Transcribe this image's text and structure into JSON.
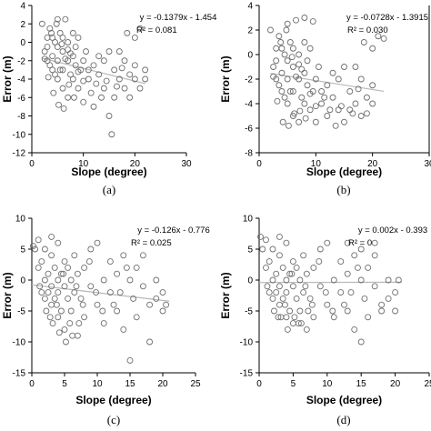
{
  "chart_data": [
    {
      "type": "scatter",
      "panel_label": "(a)",
      "xlabel": "Slope (degree)",
      "ylabel": "Error (m)",
      "xlim": [
        0,
        30
      ],
      "ylim": [
        -12,
        4
      ],
      "xticks": [
        0,
        10,
        20,
        30
      ],
      "yticks": [
        -12,
        -10,
        -8,
        -6,
        -4,
        -2,
        0,
        2,
        4
      ],
      "equation": "y = -0.1379x - 1.454",
      "r2": "R² = 0.081",
      "trend": {
        "slope": -0.1379,
        "intercept": -1.454,
        "x_range": [
          2,
          22
        ]
      },
      "points": [
        [
          2,
          2
        ],
        [
          2.5,
          -1
        ],
        [
          3,
          0.5
        ],
        [
          3,
          -2
        ],
        [
          3.5,
          1.5
        ],
        [
          4,
          -1.5
        ],
        [
          4,
          -3
        ],
        [
          4.5,
          0
        ],
        [
          5,
          2.5
        ],
        [
          5,
          -2
        ],
        [
          5,
          -4
        ],
        [
          5.5,
          1
        ],
        [
          6,
          -1
        ],
        [
          6,
          -3
        ],
        [
          6,
          -5
        ],
        [
          6.5,
          2.5
        ],
        [
          7,
          0
        ],
        [
          7,
          -2
        ],
        [
          7,
          -6
        ],
        [
          7.5,
          -3.5
        ],
        [
          8,
          1
        ],
        [
          8,
          -1.5
        ],
        [
          8,
          -4
        ],
        [
          8.5,
          -2.5
        ],
        [
          9,
          0.5
        ],
        [
          9,
          -5
        ],
        [
          9.5,
          -3
        ],
        [
          10,
          -2
        ],
        [
          10,
          -6.5
        ],
        [
          10.5,
          -1
        ],
        [
          11,
          -4
        ],
        [
          11,
          -3
        ],
        [
          12,
          -2.5
        ],
        [
          12,
          -7
        ],
        [
          13,
          -1.5
        ],
        [
          13,
          -3.5
        ],
        [
          14,
          -5
        ],
        [
          14,
          -2
        ],
        [
          15,
          -8
        ],
        [
          15,
          -1
        ],
        [
          15.5,
          -10
        ],
        [
          16,
          -3
        ],
        [
          16,
          -6
        ],
        [
          17,
          -4
        ],
        [
          17,
          -1
        ],
        [
          18,
          -2
        ],
        [
          18,
          -5
        ],
        [
          19,
          -3.5
        ],
        [
          19,
          -6
        ],
        [
          20,
          -2.5
        ],
        [
          20,
          -4
        ],
        [
          21,
          -5
        ],
        [
          22,
          -4
        ],
        [
          22,
          -3
        ],
        [
          3,
          -0.5
        ],
        [
          4,
          0.5
        ],
        [
          5,
          -0.5
        ],
        [
          6,
          0.5
        ],
        [
          7,
          -0.8
        ],
        [
          3.5,
          -2.5
        ],
        [
          4.5,
          -3.5
        ],
        [
          5.5,
          -3
        ],
        [
          6.5,
          -1.8
        ],
        [
          7.5,
          -1.2
        ],
        [
          8.5,
          -0.5
        ],
        [
          2.5,
          -1.8
        ],
        [
          3.2,
          -3.8
        ],
        [
          9,
          -3.2
        ],
        [
          10,
          -4.2
        ],
        [
          11.5,
          -5.5
        ],
        [
          12.5,
          -4.5
        ],
        [
          13.5,
          -6
        ],
        [
          14.5,
          -4.2
        ],
        [
          16.5,
          -4.8
        ],
        [
          17.5,
          -2.8
        ],
        [
          18.5,
          1
        ],
        [
          20,
          0.5
        ],
        [
          21,
          1.5
        ],
        [
          4.2,
          -5.5
        ],
        [
          5.2,
          -6.8
        ],
        [
          6.2,
          -7.2
        ],
        [
          7.2,
          -4.6
        ],
        [
          8.2,
          -6
        ],
        [
          3.8,
          1
        ],
        [
          4.8,
          2
        ],
        [
          5.8,
          -0.2
        ]
      ]
    },
    {
      "type": "scatter",
      "panel_label": "(b)",
      "xlabel": "Slope (degree)",
      "ylabel": "Error (m)",
      "xlim": [
        0,
        30
      ],
      "ylim": [
        -8,
        4
      ],
      "xticks": [
        0,
        10,
        20,
        30
      ],
      "yticks": [
        -8,
        -6,
        -4,
        -2,
        0,
        2,
        4
      ],
      "equation": "y = -0.0728x - 1.3915",
      "r2": "R² = 0.030",
      "trend": {
        "slope": -0.0728,
        "intercept": -1.3915,
        "x_range": [
          2,
          22
        ]
      },
      "points": [
        [
          2,
          2
        ],
        [
          2.5,
          -1
        ],
        [
          3,
          0.5
        ],
        [
          3,
          -2
        ],
        [
          3.5,
          1.5
        ],
        [
          4,
          -1.5
        ],
        [
          4,
          -3
        ],
        [
          4.5,
          0
        ],
        [
          5,
          2.5
        ],
        [
          5,
          -2
        ],
        [
          5,
          -4
        ],
        [
          5.5,
          1
        ],
        [
          6,
          -1
        ],
        [
          6,
          -3
        ],
        [
          6,
          -5
        ],
        [
          6.5,
          2.8
        ],
        [
          7,
          0
        ],
        [
          7,
          -2
        ],
        [
          7,
          -5.5
        ],
        [
          7.5,
          -3.5
        ],
        [
          8,
          1
        ],
        [
          8,
          -1.5
        ],
        [
          8,
          -4
        ],
        [
          8.5,
          -2.5
        ],
        [
          9,
          0.5
        ],
        [
          9,
          -4.5
        ],
        [
          9.5,
          -3
        ],
        [
          10,
          -2
        ],
        [
          10,
          -5.5
        ],
        [
          10.5,
          -1
        ],
        [
          11,
          -4
        ],
        [
          11,
          -3
        ],
        [
          12,
          -2.5
        ],
        [
          12,
          -5
        ],
        [
          13,
          -1.5
        ],
        [
          13,
          -3.5
        ],
        [
          14,
          -4.5
        ],
        [
          14,
          -2
        ],
        [
          15,
          -5.5
        ],
        [
          15,
          -1
        ],
        [
          16,
          -3
        ],
        [
          16,
          -4.5
        ],
        [
          17,
          -4
        ],
        [
          17,
          -1
        ],
        [
          18,
          -2
        ],
        [
          18,
          -5
        ],
        [
          19,
          -3.5
        ],
        [
          19,
          -4.8
        ],
        [
          20,
          -2.5
        ],
        [
          20,
          -4
        ],
        [
          21,
          1.5
        ],
        [
          22,
          1.3
        ],
        [
          3,
          -0.5
        ],
        [
          4,
          0.5
        ],
        [
          5,
          -0.5
        ],
        [
          6,
          0.5
        ],
        [
          7,
          -0.8
        ],
        [
          3.5,
          -2.5
        ],
        [
          4.5,
          -3.5
        ],
        [
          5.5,
          -3
        ],
        [
          6.5,
          -1.8
        ],
        [
          7.5,
          -1.2
        ],
        [
          8.5,
          -0.5
        ],
        [
          2.5,
          -1.8
        ],
        [
          3.2,
          -3.8
        ],
        [
          9,
          -3.2
        ],
        [
          10,
          -4.2
        ],
        [
          11.5,
          -3.5
        ],
        [
          12.5,
          -4.5
        ],
        [
          13.5,
          -5.8
        ],
        [
          14.5,
          -4.2
        ],
        [
          16.5,
          -4.8
        ],
        [
          17.5,
          -2.8
        ],
        [
          18.5,
          1
        ],
        [
          20,
          0.5
        ],
        [
          4.2,
          -5.5
        ],
        [
          5.2,
          -5.8
        ],
        [
          6.2,
          -4.8
        ],
        [
          7.2,
          -4.6
        ],
        [
          8.2,
          -5.2
        ],
        [
          3.8,
          1
        ],
        [
          4.8,
          2
        ],
        [
          5.8,
          -0.2
        ],
        [
          9.5,
          2.7
        ],
        [
          8,
          3
        ]
      ]
    },
    {
      "type": "scatter",
      "panel_label": "(c)",
      "xlabel": "Slope (degree)",
      "ylabel": "Error (m)",
      "xlim": [
        0,
        25
      ],
      "ylim": [
        -15,
        10
      ],
      "xticks": [
        0,
        5,
        10,
        15,
        20,
        25
      ],
      "yticks": [
        -15,
        -10,
        -5,
        0,
        5,
        10
      ],
      "equation": "y = -0.126x - 0.776",
      "r2": "R² = 0.025",
      "trend": {
        "slope": -0.126,
        "intercept": -0.776,
        "x_range": [
          0,
          21
        ]
      },
      "points": [
        [
          0.2,
          5.5
        ],
        [
          0.5,
          5
        ],
        [
          1,
          2
        ],
        [
          1.2,
          -1
        ],
        [
          1.5,
          3
        ],
        [
          2,
          0
        ],
        [
          2,
          -3
        ],
        [
          2.2,
          -5
        ],
        [
          2.5,
          1
        ],
        [
          2.5,
          -2
        ],
        [
          3,
          4
        ],
        [
          3,
          -1
        ],
        [
          3,
          -4
        ],
        [
          3.2,
          -7
        ],
        [
          3.5,
          2
        ],
        [
          3.5,
          -3
        ],
        [
          4,
          6
        ],
        [
          4,
          0
        ],
        [
          4,
          -2
        ],
        [
          4,
          -6
        ],
        [
          4.5,
          1
        ],
        [
          4.5,
          -5
        ],
        [
          5,
          3
        ],
        [
          5,
          -1
        ],
        [
          5,
          -8
        ],
        [
          5.5,
          -3
        ],
        [
          5.5,
          2
        ],
        [
          6,
          0
        ],
        [
          6,
          -5
        ],
        [
          6.5,
          -2
        ],
        [
          6.5,
          4
        ],
        [
          7,
          -9
        ],
        [
          7,
          1
        ],
        [
          7.5,
          -3
        ],
        [
          8,
          2
        ],
        [
          8,
          -6
        ],
        [
          9,
          -1
        ],
        [
          9,
          5
        ],
        [
          10,
          -4
        ],
        [
          10,
          6
        ],
        [
          11,
          0
        ],
        [
          11,
          -7
        ],
        [
          12,
          3
        ],
        [
          12,
          -2
        ],
        [
          13,
          -5
        ],
        [
          13,
          1
        ],
        [
          14,
          -8
        ],
        [
          14,
          4
        ],
        [
          15,
          -13
        ],
        [
          15,
          0
        ],
        [
          15.5,
          -3
        ],
        [
          16,
          2
        ],
        [
          16,
          -6
        ],
        [
          17,
          -1
        ],
        [
          17,
          4
        ],
        [
          18,
          -10
        ],
        [
          18,
          -4
        ],
        [
          19,
          0
        ],
        [
          19,
          -3
        ],
        [
          20,
          -2
        ],
        [
          20,
          -5
        ],
        [
          20.5,
          -4
        ],
        [
          1.5,
          -2
        ],
        [
          2.8,
          -6
        ],
        [
          3.8,
          -4
        ],
        [
          4.8,
          1
        ],
        [
          5.8,
          -7
        ],
        [
          6.8,
          -1
        ],
        [
          7.8,
          -4
        ],
        [
          8.8,
          3
        ],
        [
          9.8,
          -2
        ],
        [
          10.8,
          -5
        ],
        [
          12.5,
          -4
        ],
        [
          13.5,
          -2
        ],
        [
          14.5,
          2
        ],
        [
          1,
          6.5
        ],
        [
          2,
          5
        ],
        [
          3,
          7
        ],
        [
          4.2,
          -8.5
        ],
        [
          5.2,
          -10
        ],
        [
          6.2,
          -9
        ],
        [
          7.2,
          -7
        ]
      ]
    },
    {
      "type": "scatter",
      "panel_label": "(d)",
      "xlabel": "Slope (degree)",
      "ylabel": "Error (m)",
      "xlim": [
        0,
        25
      ],
      "ylim": [
        -15,
        10
      ],
      "xticks": [
        0,
        5,
        10,
        15,
        20,
        25
      ],
      "yticks": [
        -15,
        -10,
        -5,
        0,
        5,
        10
      ],
      "equation": "y = 0.002x - 0.393",
      "r2": "R² = 0",
      "trend": {
        "slope": 0.002,
        "intercept": -0.393,
        "x_range": [
          0,
          21
        ]
      },
      "points": [
        [
          0.2,
          7
        ],
        [
          0.5,
          5
        ],
        [
          1,
          2
        ],
        [
          1.2,
          -1
        ],
        [
          1.5,
          3
        ],
        [
          2,
          0
        ],
        [
          2,
          -3
        ],
        [
          2.2,
          -5
        ],
        [
          2.5,
          1
        ],
        [
          2.5,
          -2
        ],
        [
          3,
          4
        ],
        [
          3,
          -1
        ],
        [
          3,
          -4
        ],
        [
          3.2,
          -6
        ],
        [
          3.5,
          2
        ],
        [
          3.5,
          -3
        ],
        [
          4,
          6
        ],
        [
          4,
          0
        ],
        [
          4,
          -2
        ],
        [
          4,
          -6
        ],
        [
          4.5,
          1
        ],
        [
          4.5,
          -5
        ],
        [
          5,
          3
        ],
        [
          5,
          -1
        ],
        [
          5,
          -7
        ],
        [
          5.5,
          -3
        ],
        [
          5.5,
          2
        ],
        [
          6,
          0
        ],
        [
          6,
          -5
        ],
        [
          6.5,
          -2
        ],
        [
          6.5,
          4
        ],
        [
          7,
          -8
        ],
        [
          7,
          1
        ],
        [
          7.5,
          -3
        ],
        [
          8,
          2
        ],
        [
          8,
          -6
        ],
        [
          9,
          -1
        ],
        [
          9,
          5
        ],
        [
          10,
          -4
        ],
        [
          10,
          6
        ],
        [
          11,
          0
        ],
        [
          11,
          -6
        ],
        [
          12,
          3
        ],
        [
          12,
          -2
        ],
        [
          13,
          -5
        ],
        [
          13,
          1
        ],
        [
          14,
          -8
        ],
        [
          14,
          4
        ],
        [
          15,
          -10
        ],
        [
          15,
          0
        ],
        [
          15.5,
          -3
        ],
        [
          16,
          2
        ],
        [
          16,
          -6
        ],
        [
          17,
          -1
        ],
        [
          17,
          4
        ],
        [
          18,
          -5
        ],
        [
          18,
          -4
        ],
        [
          19,
          0
        ],
        [
          19,
          -3
        ],
        [
          20,
          -2
        ],
        [
          20,
          -5
        ],
        [
          20.5,
          0
        ],
        [
          1.5,
          -2
        ],
        [
          2.8,
          -6
        ],
        [
          3.8,
          -4
        ],
        [
          4.8,
          1
        ],
        [
          5.8,
          -7
        ],
        [
          6.8,
          -1
        ],
        [
          7.8,
          -4
        ],
        [
          8.8,
          3
        ],
        [
          9.8,
          -2
        ],
        [
          10.8,
          -5
        ],
        [
          12.5,
          -4
        ],
        [
          13.5,
          -2
        ],
        [
          14.5,
          2
        ],
        [
          1,
          6.5
        ],
        [
          2,
          5
        ],
        [
          3,
          7
        ],
        [
          4.2,
          -8
        ],
        [
          5.2,
          -6
        ],
        [
          6.2,
          -7
        ],
        [
          7.2,
          -5
        ],
        [
          13,
          6
        ],
        [
          15,
          5
        ],
        [
          17,
          6
        ]
      ]
    }
  ],
  "style": {
    "marker_stroke": "#6e6e6e",
    "trend_color": "#b8b8b8",
    "axis_color": "#000000"
  }
}
